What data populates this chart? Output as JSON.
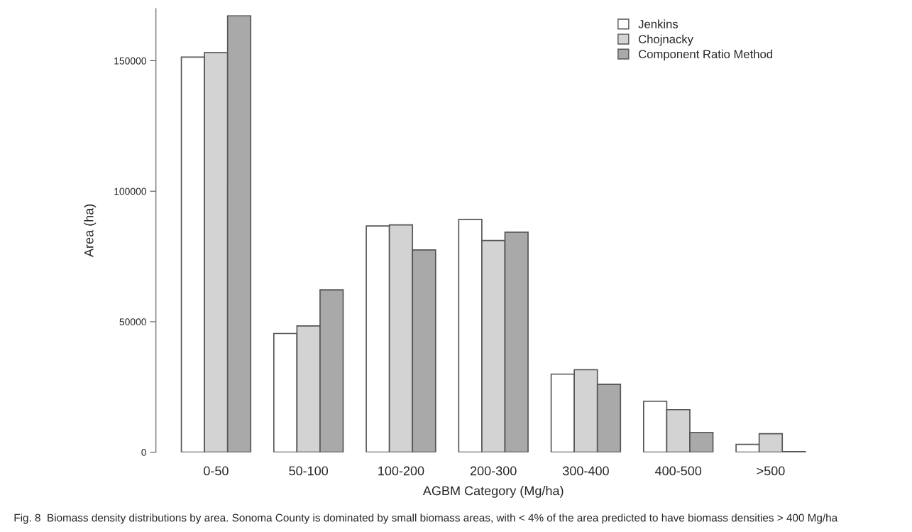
{
  "chart_data": {
    "type": "bar",
    "xlabel": "AGBM Category (Mg/ha)",
    "ylabel": "Area (ha)",
    "categories": [
      "0-50",
      "50-100",
      "100-200",
      "200-300",
      "300-400",
      "400-500",
      ">500"
    ],
    "series": [
      {
        "name": "Jenkins",
        "color": "#ffffff",
        "values": [
          151400,
          45500,
          86700,
          89200,
          29900,
          19500,
          3000
        ]
      },
      {
        "name": "Chojnacky",
        "color": "#d3d3d3",
        "values": [
          153100,
          48400,
          87100,
          81100,
          31600,
          16300,
          7100
        ]
      },
      {
        "name": "Component Ratio Method",
        "color": "#a9a9a9",
        "values": [
          167200,
          62200,
          77500,
          84300,
          26000,
          7600,
          200
        ]
      }
    ],
    "ylim": [
      0,
      170000
    ],
    "yticks": [
      0,
      50000,
      100000,
      150000
    ],
    "grid": false,
    "legend": "top right",
    "annotations": [
      "Fig. 8  Biomass density distributions by area. Sonoma County is dominated by small biomass areas, with < 4% of the area predicted to have biomass densities > 400 Mg/ha"
    ]
  }
}
